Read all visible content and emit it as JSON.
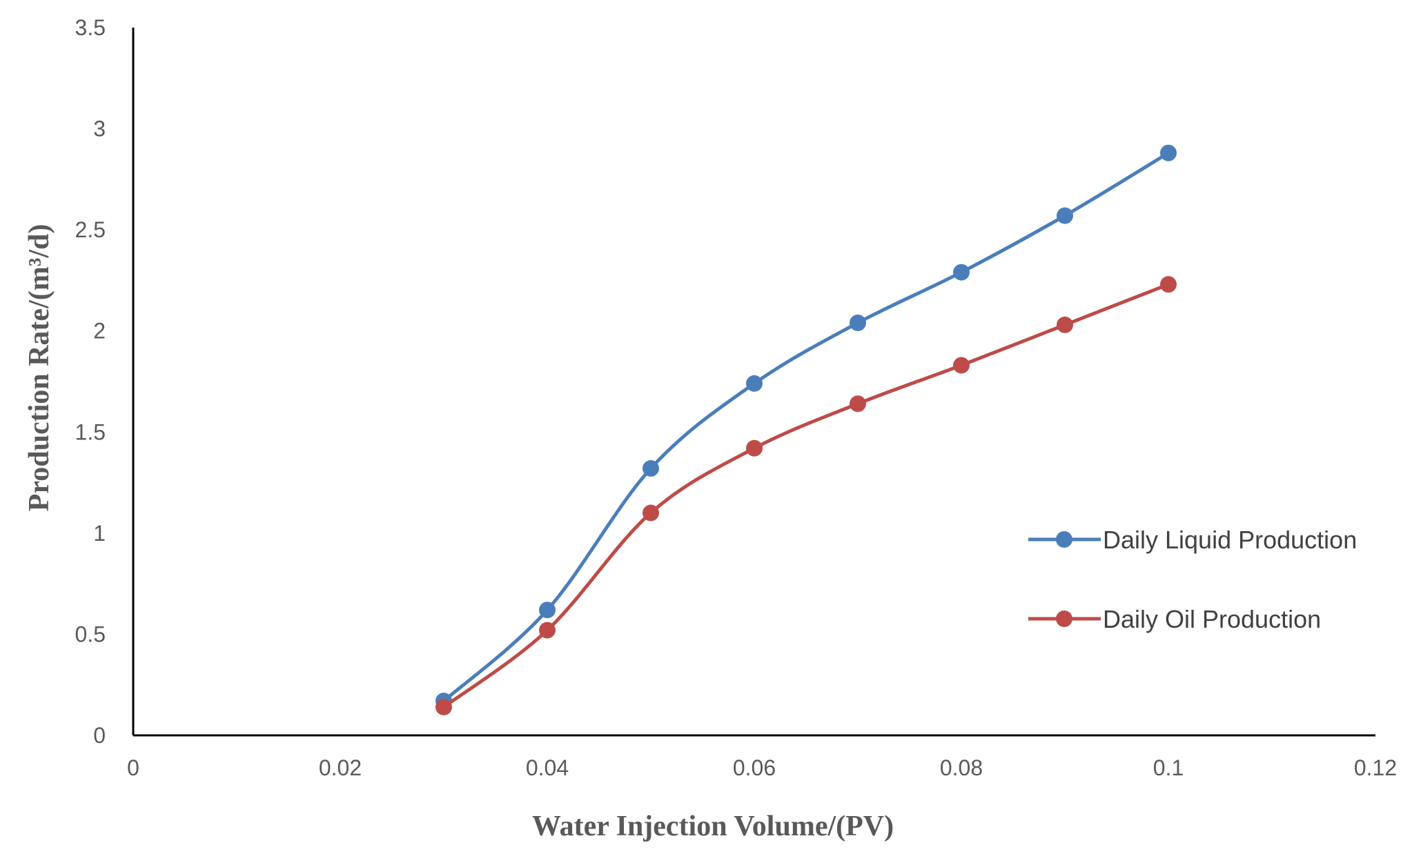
{
  "chart_data": {
    "type": "line",
    "title": "",
    "xlabel": "Water Injection Volume/(PV)",
    "ylabel": "Production Rate/(m³/d)",
    "xlim": [
      0,
      0.12
    ],
    "ylim": [
      0,
      3.5
    ],
    "x_ticks": [
      "0",
      "0.02",
      "0.04",
      "0.06",
      "0.08",
      "0.1",
      "0.12"
    ],
    "y_ticks": [
      "0",
      "0.5",
      "1",
      "1.5",
      "2",
      "2.5",
      "3",
      "3.5"
    ],
    "grid": false,
    "legend_position": "right",
    "x": [
      0.03,
      0.04,
      0.05,
      0.06,
      0.07,
      0.08,
      0.09,
      0.1
    ],
    "series": [
      {
        "name": "Daily Liquid Production",
        "color": "#4a7ebb",
        "values": [
          0.17,
          0.62,
          1.32,
          1.74,
          2.04,
          2.29,
          2.57,
          2.88
        ]
      },
      {
        "name": "Daily Oil Production",
        "color": "#be4b48",
        "values": [
          0.14,
          0.52,
          1.1,
          1.42,
          1.64,
          1.83,
          2.03,
          2.23
        ]
      }
    ]
  }
}
